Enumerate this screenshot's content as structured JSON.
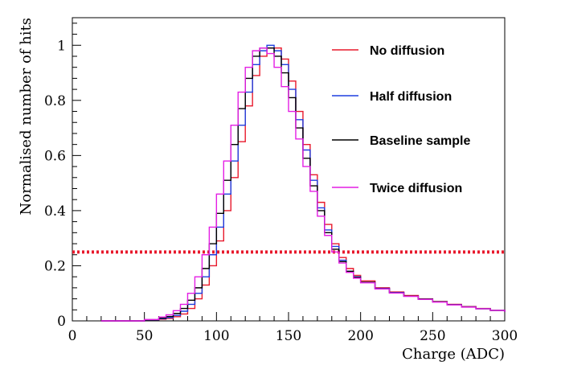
{
  "chart_data": {
    "type": "line",
    "xlabel": "Charge (ADC)",
    "ylabel": "Normalised number of hits",
    "xlim": [
      0,
      300
    ],
    "ylim": [
      0,
      1.1
    ],
    "x_ticks": [
      0,
      50,
      100,
      150,
      200,
      250,
      300
    ],
    "y_ticks": [
      0,
      0.2,
      0.4,
      0.6,
      0.8,
      1
    ],
    "grid": false,
    "legend_position": "top-right",
    "reference_line": {
      "y": 0.25,
      "style": "dotted",
      "color": "#e8192c"
    },
    "x": [
      20,
      50,
      60,
      65,
      70,
      75,
      80,
      85,
      90,
      95,
      100,
      105,
      110,
      115,
      120,
      125,
      130,
      135,
      140,
      145,
      150,
      155,
      160,
      165,
      170,
      175,
      180,
      185,
      190,
      195,
      200,
      210,
      220,
      230,
      240,
      250,
      260,
      270,
      280,
      290,
      300
    ],
    "series": [
      {
        "name": "No diffusion",
        "color": "#e8192c",
        "values": [
          0,
          0.003,
          0.006,
          0.009,
          0.015,
          0.025,
          0.045,
          0.08,
          0.13,
          0.2,
          0.29,
          0.4,
          0.52,
          0.65,
          0.78,
          0.89,
          0.96,
          0.99,
          0.99,
          0.95,
          0.87,
          0.76,
          0.64,
          0.53,
          0.43,
          0.35,
          0.28,
          0.23,
          0.19,
          0.165,
          0.145,
          0.12,
          0.105,
          0.092,
          0.08,
          0.07,
          0.06,
          0.052,
          0.045,
          0.038,
          0.033
        ]
      },
      {
        "name": "Half diffusion",
        "color": "#1f3fe0",
        "values": [
          0,
          0.003,
          0.008,
          0.012,
          0.02,
          0.035,
          0.06,
          0.1,
          0.16,
          0.24,
          0.34,
          0.46,
          0.58,
          0.71,
          0.83,
          0.93,
          0.98,
          1.0,
          0.98,
          0.93,
          0.84,
          0.73,
          0.62,
          0.51,
          0.41,
          0.33,
          0.27,
          0.22,
          0.18,
          0.16,
          0.14,
          0.118,
          0.103,
          0.09,
          0.079,
          0.069,
          0.059,
          0.051,
          0.044,
          0.038,
          0.033
        ]
      },
      {
        "name": "Baseline sample",
        "color": "#000000",
        "values": [
          0,
          0.004,
          0.01,
          0.016,
          0.027,
          0.045,
          0.075,
          0.12,
          0.19,
          0.28,
          0.39,
          0.51,
          0.64,
          0.77,
          0.88,
          0.96,
          0.99,
          0.99,
          0.96,
          0.9,
          0.81,
          0.7,
          0.59,
          0.49,
          0.4,
          0.32,
          0.26,
          0.215,
          0.18,
          0.158,
          0.14,
          0.117,
          0.102,
          0.09,
          0.079,
          0.069,
          0.059,
          0.051,
          0.044,
          0.038,
          0.033
        ]
      },
      {
        "name": "Twice diffusion",
        "color": "#e41fe4",
        "values": [
          0,
          0.005,
          0.014,
          0.022,
          0.037,
          0.06,
          0.1,
          0.16,
          0.24,
          0.34,
          0.46,
          0.58,
          0.71,
          0.83,
          0.92,
          0.98,
          0.99,
          0.97,
          0.92,
          0.85,
          0.76,
          0.66,
          0.56,
          0.47,
          0.38,
          0.31,
          0.25,
          0.21,
          0.176,
          0.155,
          0.138,
          0.116,
          0.101,
          0.089,
          0.078,
          0.068,
          0.058,
          0.05,
          0.044,
          0.038,
          0.033
        ]
      }
    ]
  }
}
